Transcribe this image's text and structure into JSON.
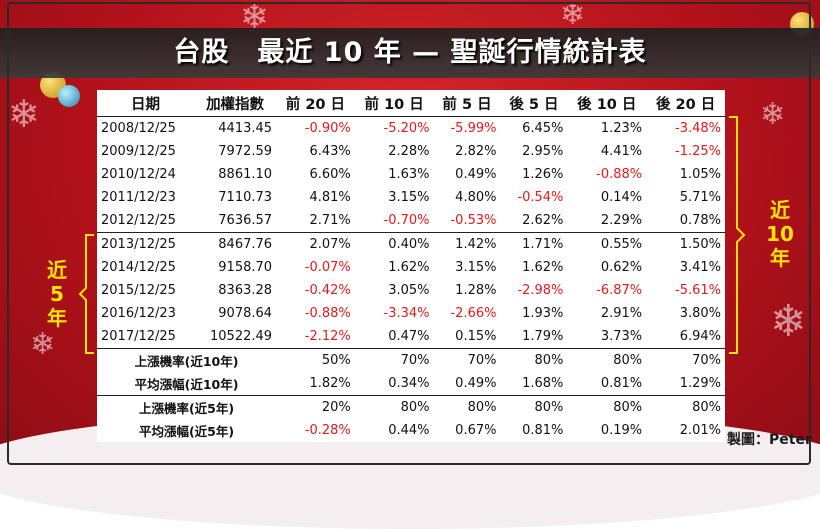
{
  "title": "台股　最近 10 年 — 聖誕行情統計表",
  "columns": [
    "日期",
    "加權指數",
    "前 20 日",
    "前 10 日",
    "前 5 日",
    "後 5 日",
    "後 10 日",
    "後 20 日"
  ],
  "rows": [
    {
      "date": "2008/12/25",
      "index": "4413.45",
      "vals": [
        "-0.90%",
        "-5.20%",
        "-5.99%",
        "6.45%",
        "1.23%",
        "-3.48%"
      ]
    },
    {
      "date": "2009/12/25",
      "index": "7972.59",
      "vals": [
        "6.43%",
        "2.28%",
        "2.82%",
        "2.95%",
        "4.41%",
        "-1.25%"
      ]
    },
    {
      "date": "2010/12/24",
      "index": "8861.10",
      "vals": [
        "6.60%",
        "1.63%",
        "0.49%",
        "1.26%",
        "-0.88%",
        "1.05%"
      ]
    },
    {
      "date": "2011/12/23",
      "index": "7110.73",
      "vals": [
        "4.81%",
        "3.15%",
        "4.80%",
        "-0.54%",
        "0.14%",
        "5.71%"
      ]
    },
    {
      "date": "2012/12/25",
      "index": "7636.57",
      "vals": [
        "2.71%",
        "-0.70%",
        "-0.53%",
        "2.62%",
        "2.29%",
        "0.78%"
      ]
    },
    {
      "date": "2013/12/25",
      "index": "8467.76",
      "vals": [
        "2.07%",
        "0.40%",
        "1.42%",
        "1.71%",
        "0.55%",
        "1.50%"
      ]
    },
    {
      "date": "2014/12/25",
      "index": "9158.70",
      "vals": [
        "-0.07%",
        "1.62%",
        "3.15%",
        "1.62%",
        "0.62%",
        "3.41%"
      ]
    },
    {
      "date": "2015/12/25",
      "index": "8363.28",
      "vals": [
        "-0.42%",
        "3.05%",
        "1.28%",
        "-2.98%",
        "-6.87%",
        "-5.61%"
      ]
    },
    {
      "date": "2016/12/23",
      "index": "9078.64",
      "vals": [
        "-0.88%",
        "-3.34%",
        "-2.66%",
        "1.93%",
        "2.91%",
        "3.80%"
      ]
    },
    {
      "date": "2017/12/25",
      "index": "10522.49",
      "vals": [
        "-2.12%",
        "0.47%",
        "0.15%",
        "1.79%",
        "3.73%",
        "6.94%"
      ]
    }
  ],
  "summary": [
    {
      "label": "上漲機率(近10年)",
      "vals": [
        "50%",
        "70%",
        "70%",
        "80%",
        "80%",
        "70%"
      ]
    },
    {
      "label": "平均漲幅(近10年)",
      "vals": [
        "1.82%",
        "0.34%",
        "0.49%",
        "1.68%",
        "0.81%",
        "1.29%"
      ]
    },
    {
      "label": "上漲機率(近5年)",
      "vals": [
        "20%",
        "80%",
        "80%",
        "80%",
        "80%",
        "80%"
      ]
    },
    {
      "label": "平均漲幅(近5年)",
      "vals": [
        "-0.28%",
        "0.44%",
        "0.67%",
        "0.81%",
        "0.19%",
        "2.01%"
      ]
    }
  ],
  "side_labels": {
    "left_line1": "近",
    "left_line2": "5",
    "left_line3": "年",
    "right_line1": "近",
    "right_line2": "10",
    "right_line3": "年"
  },
  "maker": "製圖：Peter",
  "colors": {
    "negative": "#e31a1a",
    "side_label": "#ffe600",
    "background": "#c41a22"
  }
}
